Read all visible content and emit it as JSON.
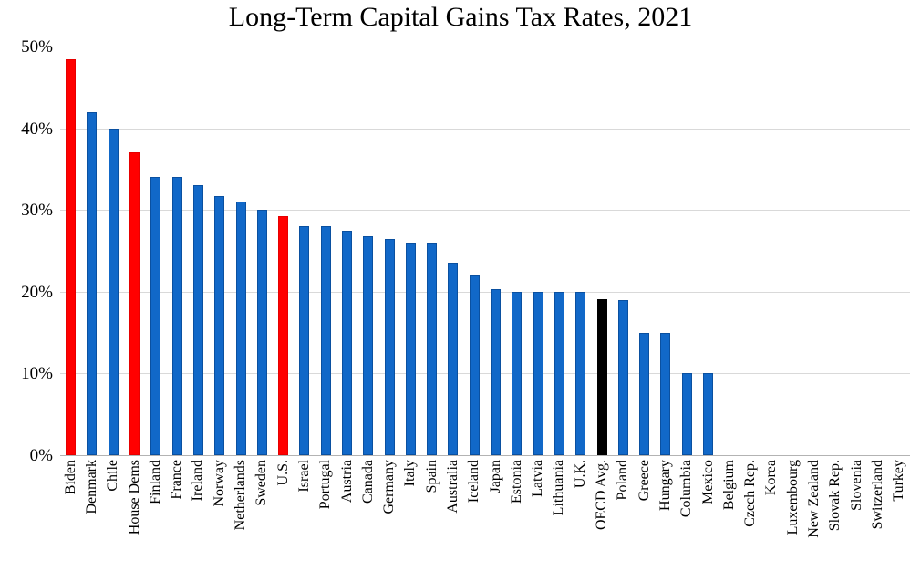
{
  "chart_data": {
    "type": "bar",
    "title": "Long-Term Capital Gains Tax Rates, 2021",
    "categories": [
      "Biden",
      "Denmark",
      "Chile",
      "House Dems",
      "Finland",
      "France",
      "Ireland",
      "Norway",
      "Netherlands",
      "Sweden",
      "U.S.",
      "Israel",
      "Portugal",
      "Austria",
      "Canada",
      "Germany",
      "Italy",
      "Spain",
      "Australia",
      "Iceland",
      "Japan",
      "Estonia",
      "Latvia",
      "Lithuania",
      "U.K.",
      "OECD Avg.",
      "Poland",
      "Greece",
      "Hungary",
      "Columbia",
      "Mexico",
      "Belgium",
      "Czech Rep.",
      "Korea",
      "Luxembourg",
      "New Zealand",
      "Slovak Rep.",
      "Slovenia",
      "Switzerland",
      "Turkey"
    ],
    "values": [
      48.4,
      42,
      40,
      37,
      34,
      34,
      33,
      31.7,
      31,
      30,
      29.2,
      28,
      28,
      27.5,
      26.8,
      26.4,
      26,
      26,
      23.5,
      22,
      20.3,
      20,
      20,
      20,
      20,
      19.1,
      19,
      15,
      15,
      10,
      10,
      0,
      0,
      0,
      0,
      0,
      0,
      0,
      0,
      0
    ],
    "colors": [
      "red",
      "blue",
      "blue",
      "red",
      "blue",
      "blue",
      "blue",
      "blue",
      "blue",
      "blue",
      "red",
      "blue",
      "blue",
      "blue",
      "blue",
      "blue",
      "blue",
      "blue",
      "blue",
      "blue",
      "blue",
      "blue",
      "blue",
      "blue",
      "blue",
      "black",
      "blue",
      "blue",
      "blue",
      "blue",
      "blue",
      "blue",
      "blue",
      "blue",
      "blue",
      "blue",
      "blue",
      "blue",
      "blue",
      "blue"
    ],
    "highlighted_red_bars": [
      "Biden",
      "House Dems",
      "U.S."
    ],
    "highlighted_black_bars": [
      "OECD Avg."
    ],
    "palette": {
      "blue": "#1168c8",
      "blue_border": "#0a50a0",
      "red": "#ff0000",
      "red_border": "#e60000",
      "black": "#000000",
      "black_border": "#000000",
      "gridline": "#d9d9d9",
      "axis_line": "#b3b3b3"
    },
    "xlabel": "",
    "ylabel": "",
    "y_ticks": [
      "0%",
      "10%",
      "20%",
      "30%",
      "40%",
      "50%"
    ],
    "ylim": [
      0,
      50
    ],
    "grid": true,
    "legend": "none"
  }
}
